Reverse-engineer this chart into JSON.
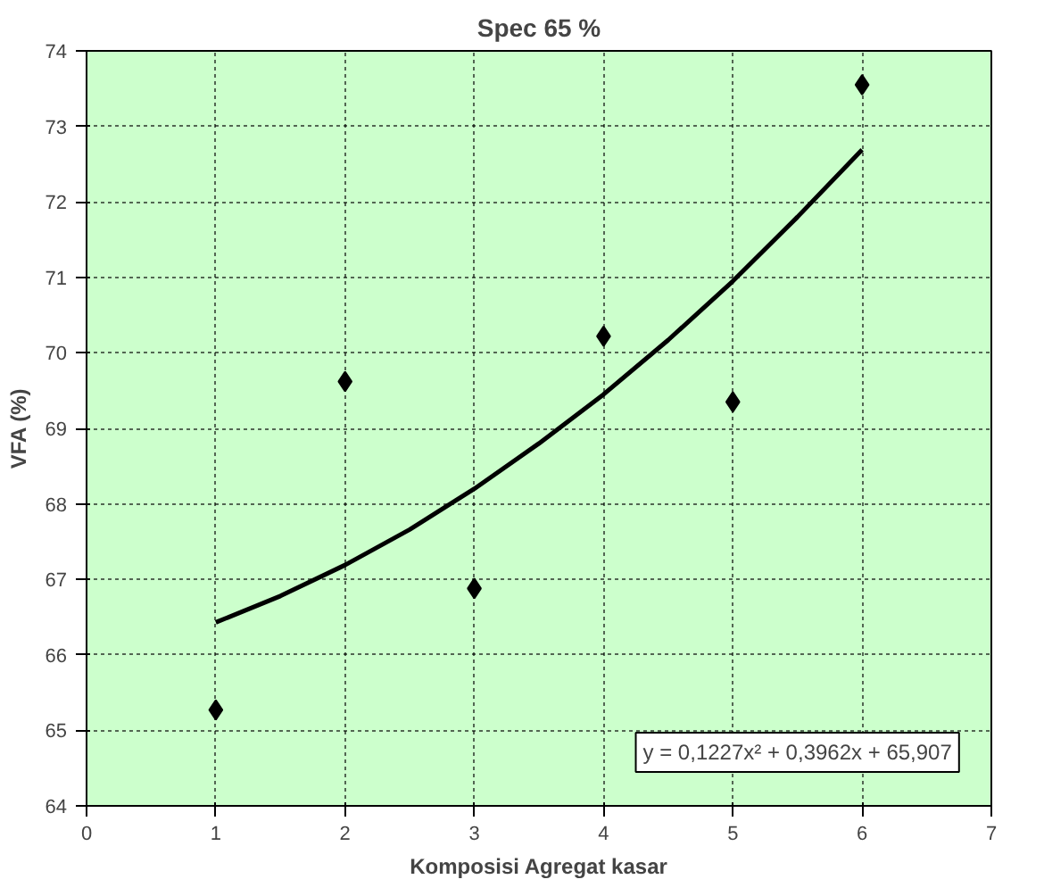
{
  "chart_data": {
    "type": "scatter",
    "title": "Spec 65 %",
    "xlabel": "Komposisi Agregat kasar",
    "ylabel": "VFA (%)",
    "xlim": [
      0,
      7
    ],
    "xticks": [
      0,
      1,
      2,
      3,
      4,
      5,
      6,
      7
    ],
    "ylim": [
      64,
      74
    ],
    "yticks": [
      64,
      65,
      66,
      67,
      68,
      69,
      70,
      71,
      72,
      73,
      74
    ],
    "grid": true,
    "series": [
      {
        "marker": "diamond",
        "color": "#000000",
        "x": [
          1,
          2,
          3,
          4,
          5,
          6
        ],
        "values": [
          65.27,
          69.62,
          66.88,
          70.22,
          69.35,
          73.55
        ]
      },
      {
        "type": "line",
        "color": "#000000",
        "x": [
          1,
          1.5,
          2,
          2.5,
          3,
          3.5,
          4,
          4.5,
          5,
          5.5,
          6
        ],
        "values": [
          66.43,
          66.78,
          67.19,
          67.66,
          68.2,
          68.8,
          69.45,
          70.17,
          70.95,
          71.8,
          72.69
        ]
      }
    ],
    "annotations": [
      "y = 0,1227x² + 0,3962x + 65,907"
    ]
  }
}
